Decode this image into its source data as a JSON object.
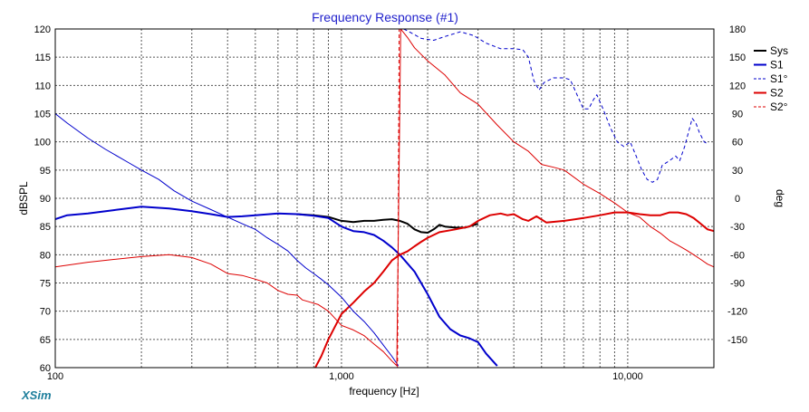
{
  "chart_data": {
    "type": "line",
    "title": "Frequency Response (#1)",
    "xlabel": "frequency [Hz]",
    "ylabel": "dBSPL",
    "y2label": "deg",
    "xscale": "log",
    "xlim": [
      100,
      20000
    ],
    "ylim": [
      60,
      120
    ],
    "y2lim": [
      -180,
      180
    ],
    "grid": true,
    "legend_position": "top-right",
    "x_ticks": [
      {
        "value": 100,
        "label": "100"
      },
      {
        "value": 1000,
        "label": "1,000"
      },
      {
        "value": 10000,
        "label": "10,000"
      }
    ],
    "y_ticks": [
      "60",
      "65",
      "70",
      "75",
      "80",
      "85",
      "90",
      "95",
      "100",
      "105",
      "110",
      "115",
      "120"
    ],
    "y2_ticks": [
      "-150",
      "-120",
      "-90",
      "-60",
      "-30",
      "0",
      "30",
      "60",
      "90",
      "120",
      "150",
      "180"
    ],
    "series": [
      {
        "name": "Sys",
        "axis": "left",
        "color": "#000000",
        "width": 2,
        "dash": "",
        "points": [
          [
            700,
            87.2
          ],
          [
            800,
            87.0
          ],
          [
            900,
            86.7
          ],
          [
            1000,
            86.0
          ],
          [
            1100,
            85.8
          ],
          [
            1200,
            86.0
          ],
          [
            1300,
            86.0
          ],
          [
            1400,
            86.2
          ],
          [
            1500,
            86.3
          ],
          [
            1600,
            86.0
          ],
          [
            1700,
            85.5
          ],
          [
            1800,
            84.5
          ],
          [
            1900,
            84.0
          ],
          [
            2000,
            83.9
          ],
          [
            2100,
            84.5
          ],
          [
            2200,
            85.3
          ],
          [
            2300,
            85.0
          ],
          [
            2500,
            84.8
          ],
          [
            2700,
            84.8
          ],
          [
            3000,
            85.5
          ]
        ]
      },
      {
        "name": "S1",
        "axis": "left",
        "color": "#0000cc",
        "width": 2,
        "dash": "",
        "points": [
          [
            100,
            86.3
          ],
          [
            110,
            87.0
          ],
          [
            130,
            87.3
          ],
          [
            160,
            87.9
          ],
          [
            200,
            88.5
          ],
          [
            250,
            88.2
          ],
          [
            300,
            87.7
          ],
          [
            350,
            87.2
          ],
          [
            400,
            86.7
          ],
          [
            450,
            86.8
          ],
          [
            500,
            87.0
          ],
          [
            600,
            87.3
          ],
          [
            700,
            87.2
          ],
          [
            800,
            86.9
          ],
          [
            900,
            86.5
          ],
          [
            1000,
            85.0
          ],
          [
            1100,
            84.2
          ],
          [
            1200,
            84.0
          ],
          [
            1300,
            83.5
          ],
          [
            1400,
            82.5
          ],
          [
            1500,
            81.3
          ],
          [
            1600,
            80.0
          ],
          [
            1800,
            77.0
          ],
          [
            2000,
            73.0
          ],
          [
            2200,
            69.0
          ],
          [
            2400,
            66.8
          ],
          [
            2600,
            65.7
          ],
          [
            2800,
            65.2
          ],
          [
            3000,
            64.5
          ],
          [
            3200,
            62.5
          ],
          [
            3500,
            60.3
          ]
        ]
      },
      {
        "name": "S1°",
        "axis": "right",
        "color": "#0000cc",
        "width": 1,
        "dash": "4,3",
        "points": [
          [
            1650,
            180
          ],
          [
            1750,
            176
          ],
          [
            1900,
            170
          ],
          [
            2100,
            168
          ],
          [
            2300,
            172
          ],
          [
            2600,
            177
          ],
          [
            2900,
            173
          ],
          [
            3200,
            165
          ],
          [
            3600,
            159
          ],
          [
            4000,
            159
          ],
          [
            4300,
            158
          ],
          [
            4500,
            150
          ],
          [
            4700,
            125
          ],
          [
            4900,
            115
          ],
          [
            5100,
            123
          ],
          [
            5500,
            128
          ],
          [
            6000,
            128
          ],
          [
            6300,
            126
          ],
          [
            6700,
            108
          ],
          [
            7000,
            95
          ],
          [
            7300,
            95
          ],
          [
            7600,
            105
          ],
          [
            7800,
            110
          ],
          [
            8200,
            95
          ],
          [
            8700,
            75
          ],
          [
            9200,
            60
          ],
          [
            9700,
            55
          ],
          [
            10200,
            60
          ],
          [
            10700,
            45
          ],
          [
            11200,
            30
          ],
          [
            11700,
            20
          ],
          [
            12200,
            17
          ],
          [
            12700,
            20
          ],
          [
            13200,
            35
          ],
          [
            14000,
            40
          ],
          [
            14700,
            45
          ],
          [
            15200,
            40
          ],
          [
            15800,
            55
          ],
          [
            16300,
            70
          ],
          [
            16800,
            85
          ],
          [
            17300,
            80
          ],
          [
            17800,
            70
          ],
          [
            18500,
            60
          ],
          [
            19000,
            58
          ]
        ]
      },
      {
        "name": "S2",
        "axis": "left",
        "color": "#dd0000",
        "width": 2,
        "dash": "",
        "points": [
          [
            810,
            60.0
          ],
          [
            850,
            62.0
          ],
          [
            900,
            65.0
          ],
          [
            1000,
            69.5
          ],
          [
            1100,
            71.5
          ],
          [
            1200,
            73.5
          ],
          [
            1300,
            75.0
          ],
          [
            1400,
            77.0
          ],
          [
            1500,
            79.0
          ],
          [
            1600,
            80.0
          ],
          [
            1700,
            80.6
          ],
          [
            1800,
            81.5
          ],
          [
            1900,
            82.3
          ],
          [
            2000,
            83.0
          ],
          [
            2200,
            84.0
          ],
          [
            2500,
            84.5
          ],
          [
            2800,
            85.0
          ],
          [
            3000,
            86.0
          ],
          [
            3300,
            87.0
          ],
          [
            3600,
            87.3
          ],
          [
            3800,
            87.0
          ],
          [
            4000,
            87.2
          ],
          [
            4300,
            86.3
          ],
          [
            4500,
            86.0
          ],
          [
            4800,
            86.8
          ],
          [
            5200,
            85.7
          ],
          [
            6000,
            86.0
          ],
          [
            7000,
            86.5
          ],
          [
            8000,
            87.0
          ],
          [
            9000,
            87.5
          ],
          [
            10000,
            87.5
          ],
          [
            11000,
            87.2
          ],
          [
            12000,
            87.0
          ],
          [
            13000,
            87.0
          ],
          [
            14000,
            87.5
          ],
          [
            15000,
            87.5
          ],
          [
            16000,
            87.2
          ],
          [
            17000,
            86.5
          ],
          [
            18000,
            85.5
          ],
          [
            19000,
            84.5
          ],
          [
            20000,
            84.2
          ]
        ]
      },
      {
        "name": "S2°",
        "axis": "right",
        "color": "#dd0000",
        "width": 1,
        "dash": "4,3",
        "points": [
          [
            1570,
            -180
          ],
          [
            1590,
            180
          ]
        ]
      },
      {
        "name": "",
        "axis": "right",
        "color": "#0000cc",
        "width": 1,
        "dash": "",
        "points": [
          [
            100,
            90
          ],
          [
            110,
            80
          ],
          [
            130,
            64
          ],
          [
            150,
            52
          ],
          [
            180,
            38
          ],
          [
            200,
            30
          ],
          [
            230,
            20
          ],
          [
            260,
            8
          ],
          [
            300,
            -3
          ],
          [
            350,
            -12
          ],
          [
            400,
            -20
          ],
          [
            450,
            -27
          ],
          [
            500,
            -33
          ],
          [
            550,
            -42
          ],
          [
            600,
            -49
          ],
          [
            650,
            -56
          ],
          [
            700,
            -66
          ],
          [
            750,
            -74
          ],
          [
            800,
            -80
          ],
          [
            850,
            -86
          ],
          [
            900,
            -92
          ],
          [
            1000,
            -105
          ],
          [
            1100,
            -120
          ],
          [
            1200,
            -131
          ],
          [
            1300,
            -143
          ],
          [
            1400,
            -156
          ],
          [
            1500,
            -168
          ],
          [
            1580,
            -178
          ]
        ]
      },
      {
        "name": "",
        "axis": "right",
        "color": "#dd0000",
        "width": 1,
        "dash": "",
        "points": [
          [
            100,
            -73
          ],
          [
            130,
            -68
          ],
          [
            160,
            -65
          ],
          [
            200,
            -62
          ],
          [
            250,
            -60
          ],
          [
            300,
            -63
          ],
          [
            350,
            -70
          ],
          [
            400,
            -80
          ],
          [
            450,
            -82
          ],
          [
            500,
            -86
          ],
          [
            550,
            -90
          ],
          [
            600,
            -98
          ],
          [
            650,
            -102
          ],
          [
            700,
            -103
          ],
          [
            730,
            -108
          ],
          [
            770,
            -110
          ],
          [
            830,
            -113
          ],
          [
            900,
            -120
          ],
          [
            1000,
            -135
          ],
          [
            1100,
            -140
          ],
          [
            1200,
            -146
          ],
          [
            1300,
            -155
          ],
          [
            1400,
            -163
          ],
          [
            1500,
            -173
          ],
          [
            1560,
            -178
          ],
          [
            1610,
            180
          ],
          [
            1700,
            171
          ],
          [
            1800,
            160
          ],
          [
            2000,
            146
          ],
          [
            2300,
            131
          ],
          [
            2600,
            112
          ],
          [
            3000,
            100
          ],
          [
            3500,
            78
          ],
          [
            4000,
            60
          ],
          [
            4500,
            50
          ],
          [
            5000,
            36
          ],
          [
            5500,
            33
          ],
          [
            6000,
            30
          ],
          [
            7000,
            15
          ],
          [
            8000,
            5
          ],
          [
            9000,
            -5
          ],
          [
            10000,
            -15
          ],
          [
            11000,
            -20
          ],
          [
            12000,
            -30
          ],
          [
            13000,
            -37
          ],
          [
            14000,
            -45
          ],
          [
            15000,
            -50
          ],
          [
            16000,
            -55
          ],
          [
            17000,
            -60
          ],
          [
            18000,
            -65
          ],
          [
            19000,
            -70
          ],
          [
            20000,
            -73
          ]
        ]
      }
    ]
  },
  "watermark": "XSim"
}
